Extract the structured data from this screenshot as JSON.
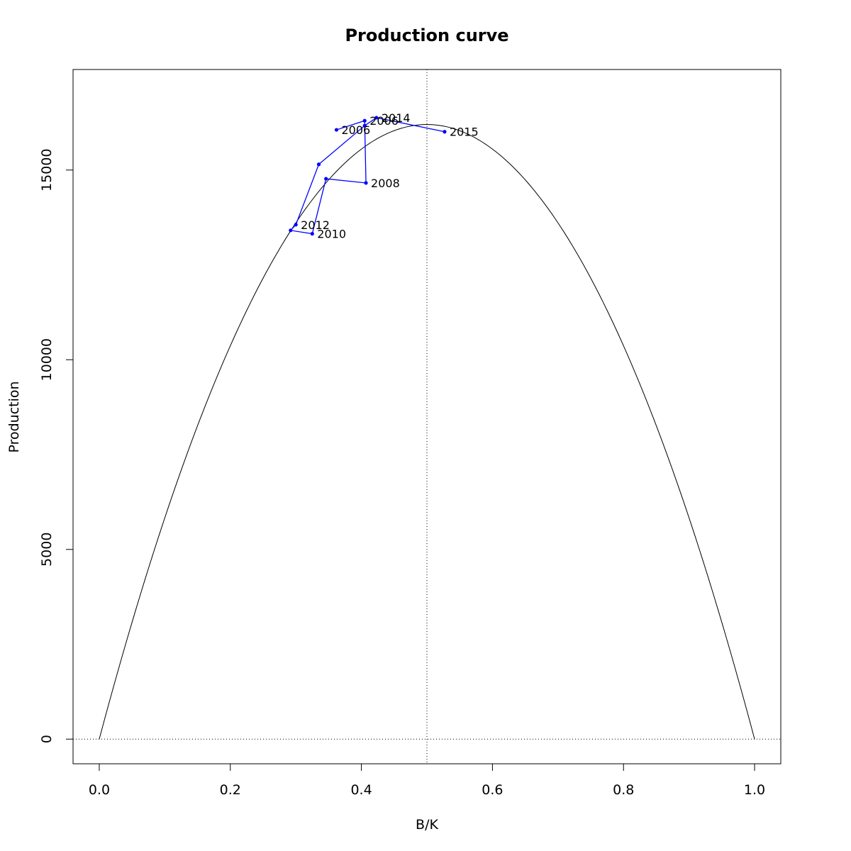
{
  "chart_data": {
    "type": "line",
    "title": "Production curve",
    "xlabel": "B/K",
    "ylabel": "Production",
    "xlim": [
      -0.04,
      1.04
    ],
    "ylim": [
      -650,
      17650
    ],
    "x_ticks": [
      0.0,
      0.2,
      0.4,
      0.6,
      0.8,
      1.0
    ],
    "x_tick_labels": [
      "0.0",
      "0.2",
      "0.4",
      "0.6",
      "0.8",
      "1.0"
    ],
    "y_ticks": [
      0,
      5000,
      10000,
      15000
    ],
    "y_tick_labels": [
      "0",
      "5000",
      "10000",
      "15000"
    ],
    "grid": false,
    "reference_lines": {
      "vertical_x": 0.5,
      "horizontal_y": 0,
      "style": "dotted"
    },
    "production_curve": {
      "description": "parabola",
      "peak_x": 0.5,
      "peak_y": 16200,
      "x_from": 0.0,
      "x_to": 1.0,
      "color": "#000000"
    },
    "trajectory": {
      "color": "#0000ff",
      "points": [
        {
          "x": 0.362,
          "y": 16060,
          "label": "2006"
        },
        {
          "x": 0.405,
          "y": 16300,
          "label": "2006"
        },
        {
          "x": 0.407,
          "y": 14660,
          "label": "2008"
        },
        {
          "x": 0.346,
          "y": 14770,
          "label": ""
        },
        {
          "x": 0.325,
          "y": 13320,
          "label": "2010"
        },
        {
          "x": 0.292,
          "y": 13410,
          "label": ""
        },
        {
          "x": 0.3,
          "y": 13560,
          "label": "2012"
        },
        {
          "x": 0.335,
          "y": 15150,
          "label": ""
        },
        {
          "x": 0.405,
          "y": 16170,
          "label": ""
        },
        {
          "x": 0.423,
          "y": 16380,
          "label": "2014"
        },
        {
          "x": 0.527,
          "y": 16010,
          "label": "2015"
        }
      ]
    }
  }
}
